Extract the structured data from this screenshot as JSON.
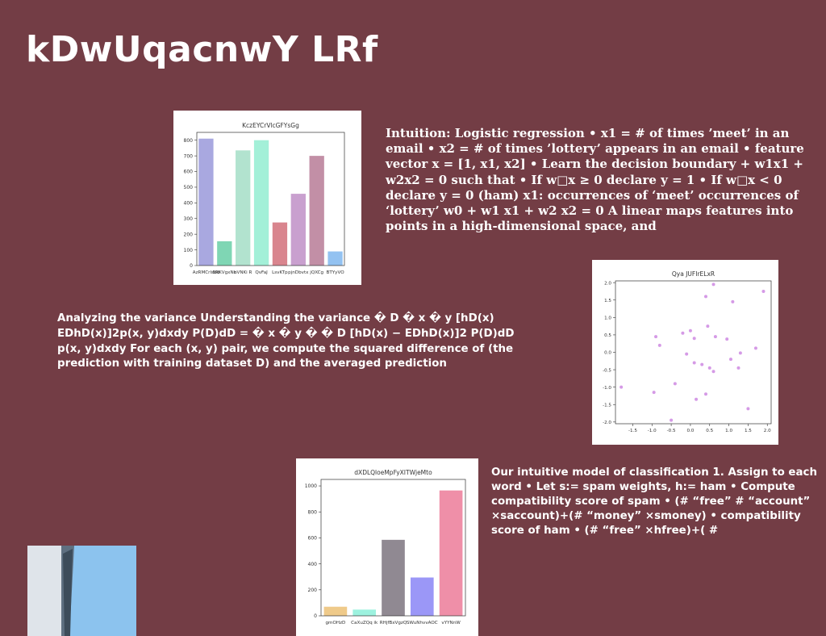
{
  "slide": {
    "title": "kDwUqacnwY LRf",
    "text_right_top": "Intuition: Logistic regression • x1 = # of times ’meet’ in an email • x2 = # of times ’lottery’ appears in an email • feature vector x = [1, x1, x2] • Learn the decision boundary + w1x1 + w2x2 = 0 such that • If w□x ≥ 0 declare y = 1 • If w□x < 0 declare y = 0 (ham) x1: occurrences of ‘meet’ occurrences of ‘lottery’ w0 + w1 x1 + w2 x2 = 0 A linear maps features into points in a high-dimensional space, and",
    "text_left_mid": "Analyzing the variance Understanding the variance � D � x � y [hD(x) EDhD(x)]2p(x, y)dxdy P(D)dD = � x � y � � D [hD(x) − EDhD(x)]2 P(D)dD p(x, y)dxdy For each (x, y) pair, we compute the squared difference of (the prediction with training dataset D) and the averaged prediction",
    "text_right_bottom": "Our intuitive model of classification 1. Assign to each word • Let s:= spam weights, h:= ham • Compute compatibility score of spam • (# “free” # “account” ×saccount)+(# “money” ×smoney) • compatibility score of ham • (# “free” ×hfree)+( #"
  },
  "chart_data": [
    {
      "type": "bar",
      "title": "KczEYCrVlcGFYsGg",
      "categories": [
        "AzRMCrlsdd",
        "BRKVgxNb",
        "nVNKi R",
        "QvFaJ",
        "LsvKTp",
        "pjnDbvtx",
        "jQXCg",
        "BTYyVO"
      ],
      "values": [
        810,
        155,
        735,
        800,
        275,
        458,
        700,
        90
      ],
      "colors": [
        "#a9a8e0",
        "#7fd6b4",
        "#b2e3cf",
        "#a3f0d8",
        "#d9858e",
        "#c9a0cf",
        "#c28fa6",
        "#93c2f1"
      ],
      "ylim": [
        0,
        850
      ],
      "yticks": [
        0,
        100,
        200,
        300,
        400,
        500,
        600,
        700,
        800
      ]
    },
    {
      "type": "scatter",
      "title": "Qya JUFIrELxR",
      "color": "#d59ae6",
      "xlim": [
        -1.95,
        2.1
      ],
      "ylim": [
        -2.05,
        2.05
      ],
      "xticks": [
        -1.5,
        -1.0,
        -0.5,
        0.0,
        0.5,
        1.0,
        1.5,
        2.0
      ],
      "yticks": [
        -2.0,
        -1.5,
        -1.0,
        -0.5,
        0.0,
        0.5,
        1.0,
        1.5,
        2.0
      ],
      "x": [
        0.6,
        1.9,
        0.4,
        1.1,
        -0.9,
        -0.8,
        0.0,
        0.1,
        -0.2,
        -0.1,
        0.45,
        0.65,
        0.95,
        1.3,
        1.7,
        0.6,
        0.3,
        0.5,
        1.05,
        1.25,
        -1.8,
        -0.95,
        -0.4,
        0.4,
        0.15,
        1.5,
        -0.5,
        0.1
      ],
      "y": [
        1.95,
        1.75,
        1.6,
        1.45,
        0.45,
        0.2,
        0.62,
        0.4,
        0.55,
        -0.05,
        0.75,
        0.45,
        0.38,
        -0.02,
        0.12,
        -0.55,
        -0.35,
        -0.45,
        -0.2,
        -0.45,
        -1.0,
        -1.15,
        -0.9,
        -1.2,
        -1.35,
        -1.62,
        -1.95,
        -0.3
      ]
    },
    {
      "type": "bar",
      "title": "dXDLQloeMpFyXITWjeMto",
      "categories": [
        "gmOHzD",
        "CaXuZQq ik",
        "RHjfBxVgzQ",
        "SWuNhvvAOC",
        "vYYNnW"
      ],
      "values": [
        70,
        48,
        585,
        295,
        965
      ],
      "colors": [
        "#efca8a",
        "#9df2df",
        "#908992",
        "#9b97f7",
        "#ef8fa8"
      ],
      "ylim": [
        0,
        1050
      ],
      "yticks": [
        0,
        200,
        400,
        600,
        800,
        1000
      ]
    }
  ]
}
